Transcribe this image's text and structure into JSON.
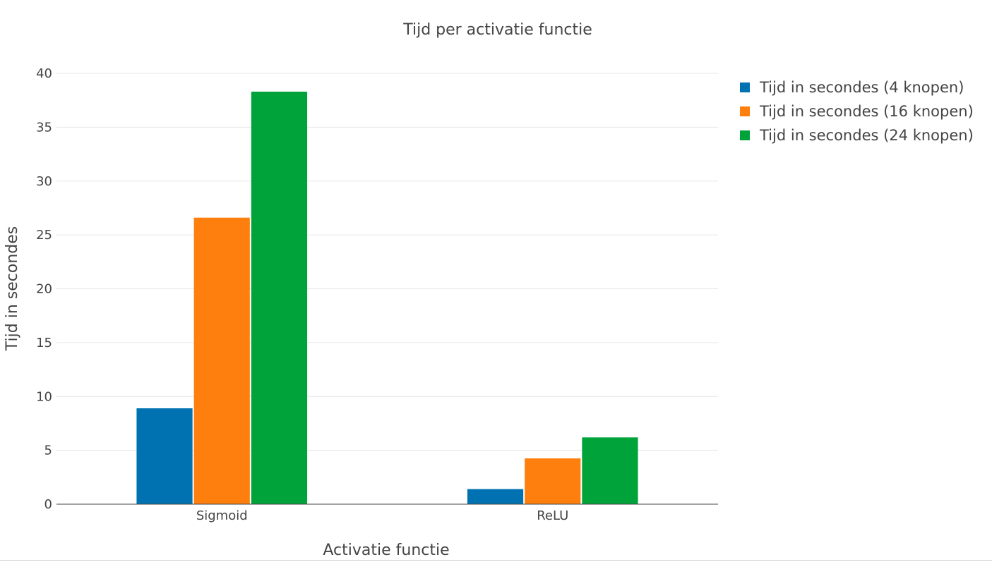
{
  "chart_data": {
    "type": "bar",
    "title": "Tijd per activatie functie",
    "xlabel": "Activatie functie",
    "ylabel": "Tijd in secondes",
    "categories": [
      "Sigmoid",
      "ReLU"
    ],
    "series": [
      {
        "name": "Tijd in secondes (4 knopen)",
        "color": "#0072b2",
        "values": [
          8.9,
          1.4
        ]
      },
      {
        "name": "Tijd in secondes (16 knopen)",
        "color": "#ff7f0e",
        "values": [
          26.6,
          4.25
        ]
      },
      {
        "name": "Tijd in secondes (24 knopen)",
        "color": "#00a33a",
        "values": [
          38.3,
          6.2
        ]
      }
    ],
    "ylim": [
      0,
      40
    ],
    "yticks": [
      0,
      5,
      10,
      15,
      20,
      25,
      30,
      35,
      40
    ],
    "grid": true,
    "legend_position": "top-right"
  }
}
